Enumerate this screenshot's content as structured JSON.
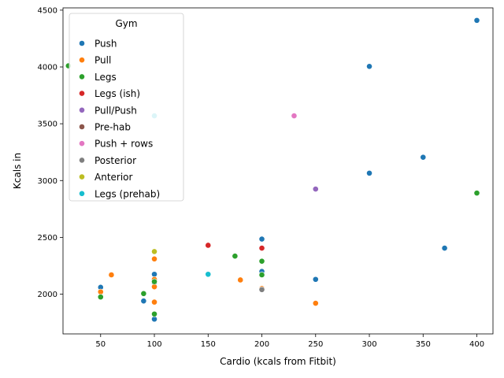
{
  "chart_data": {
    "type": "scatter",
    "title": "",
    "xlabel": "Cardio (kcals from Fitbit)",
    "ylabel": "Kcals in",
    "xlim": [
      15,
      415
    ],
    "ylim": [
      1650,
      4520
    ],
    "xticks": [
      50,
      100,
      150,
      200,
      250,
      300,
      350,
      400
    ],
    "yticks": [
      2000,
      2500,
      3000,
      3500,
      4000,
      4500
    ],
    "grid": false,
    "legend": {
      "title": "Gym",
      "placement": "top-left"
    },
    "series": [
      {
        "name": "Push",
        "color": "#1f77b4",
        "points": [
          [
            400,
            4410
          ],
          [
            300,
            4005
          ],
          [
            350,
            3205
          ],
          [
            300,
            3065
          ],
          [
            370,
            2405
          ],
          [
            200,
            2485
          ],
          [
            200,
            2200
          ],
          [
            100,
            2175
          ],
          [
            250,
            2130
          ],
          [
            100,
            2100
          ],
          [
            50,
            2060
          ],
          [
            90,
            1940
          ],
          [
            100,
            1780
          ]
        ]
      },
      {
        "name": "Pull",
        "color": "#ff7f0e",
        "points": [
          [
            100,
            2310
          ],
          [
            60,
            2170
          ],
          [
            100,
            2130
          ],
          [
            180,
            2125
          ],
          [
            100,
            2065
          ],
          [
            200,
            2050
          ],
          [
            50,
            2020
          ],
          [
            100,
            1930
          ],
          [
            250,
            1920
          ]
        ]
      },
      {
        "name": "Legs",
        "color": "#2ca02c",
        "points": [
          [
            20,
            4010
          ],
          [
            400,
            2890
          ],
          [
            175,
            2335
          ],
          [
            200,
            2290
          ],
          [
            200,
            2170
          ],
          [
            100,
            2110
          ],
          [
            90,
            2005
          ],
          [
            50,
            1975
          ],
          [
            100,
            1825
          ]
        ]
      },
      {
        "name": "Legs (ish)",
        "color": "#d62728",
        "points": [
          [
            150,
            2430
          ],
          [
            200,
            2405
          ]
        ]
      },
      {
        "name": "Pull/Push",
        "color": "#9467bd",
        "points": [
          [
            250,
            2925
          ]
        ]
      },
      {
        "name": "Pre-hab",
        "color": "#8c564b",
        "points": []
      },
      {
        "name": "Push + rows",
        "color": "#e377c2",
        "points": [
          [
            230,
            3570
          ]
        ]
      },
      {
        "name": "Posterior",
        "color": "#7f7f7f",
        "points": [
          [
            200,
            2040
          ]
        ]
      },
      {
        "name": "Anterior",
        "color": "#bcbd22",
        "points": [
          [
            100,
            2375
          ]
        ]
      },
      {
        "name": "Legs (prehab)",
        "color": "#17becf",
        "points": [
          [
            150,
            2175
          ],
          [
            100,
            3570
          ]
        ]
      }
    ]
  }
}
